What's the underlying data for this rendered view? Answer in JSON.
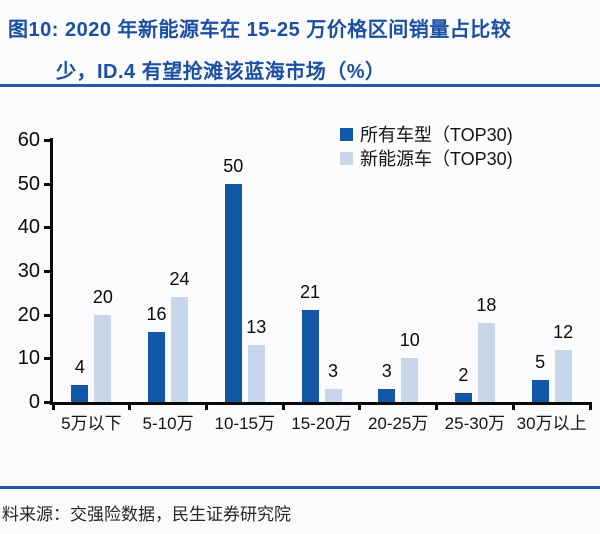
{
  "header": {
    "title_line1": "图10: 2020 年新能源车在 15-25 万价格区间销量占比较",
    "title_line2": "少，ID.4 有望抢滩该蓝海市场（%）"
  },
  "chart_data": {
    "type": "bar",
    "categories": [
      "5万以下",
      "5-10万",
      "10-15万",
      "15-20万",
      "20-25万",
      "25-30万",
      "30万以上"
    ],
    "series": [
      {
        "name": "所有车型（TOP30)",
        "color": "#1257a8",
        "values": [
          4,
          16,
          50,
          21,
          3,
          2,
          5
        ]
      },
      {
        "name": "新能源车（TOP30)",
        "color": "#c7d7e9",
        "values": [
          20,
          24,
          13,
          3,
          10,
          18,
          12
        ]
      }
    ],
    "title": "2020 年新能源车在 15-25 万价格区间销量占比较少，ID.4 有望抢滩该蓝海市场（%）",
    "xlabel": "",
    "ylabel": "",
    "ylim": [
      0,
      60
    ],
    "yticks": [
      0,
      10,
      20,
      30,
      40,
      50,
      60
    ],
    "grid": false,
    "legend_position": "top-right",
    "value_labels": true
  },
  "footer": {
    "source": "料来源：交强险数据，民生证券研究院"
  },
  "colors": {
    "title_blue": "#1a4fa3",
    "rule_blue": "#2458a8",
    "axis_black": "#0a0a0a",
    "bar_dark": "#1257a8",
    "bar_light": "#c7d7e9",
    "background": "#fbfbfd"
  }
}
